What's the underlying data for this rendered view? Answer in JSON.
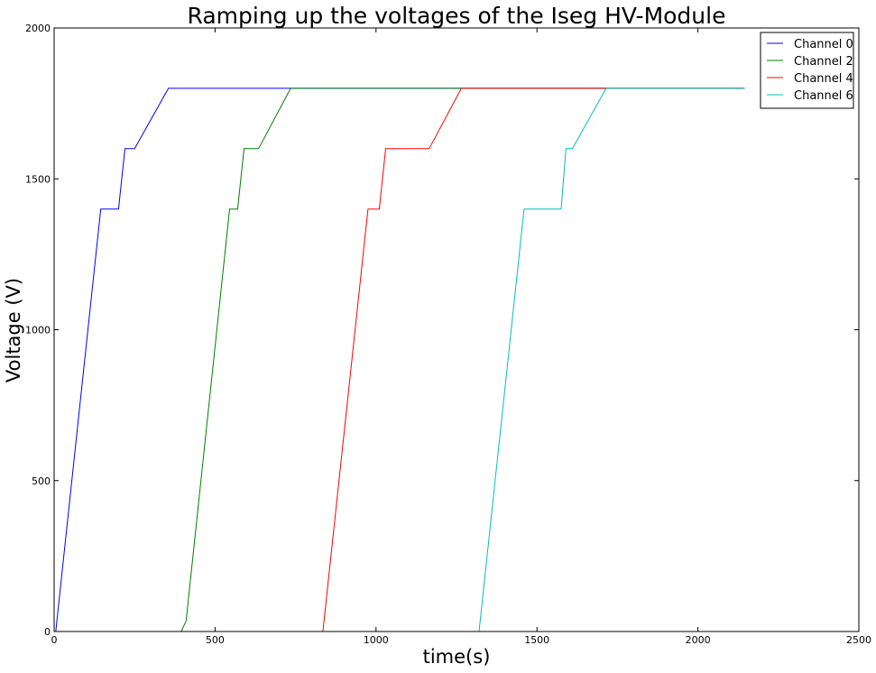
{
  "chart_data": {
    "type": "line",
    "title": "Ramping up the voltages of the Iseg HV-Module",
    "xlabel": "time(s)",
    "ylabel": "Voltage (V)",
    "xlim": [
      0,
      2500
    ],
    "ylim": [
      0,
      2000
    ],
    "xticks": [
      0,
      500,
      1000,
      1500,
      2000,
      2500
    ],
    "yticks": [
      0,
      500,
      1000,
      1500,
      2000
    ],
    "grid": false,
    "legend_position": "top-right",
    "series": [
      {
        "name": "Channel 0",
        "color": "#0000ff",
        "x": [
          0,
          5,
          145,
          200,
          220,
          250,
          355,
          2145
        ],
        "y": [
          0,
          0,
          1400,
          1400,
          1600,
          1600,
          1800,
          1800
        ]
      },
      {
        "name": "Channel 2",
        "color": "#008000",
        "x": [
          0,
          395,
          410,
          545,
          570,
          590,
          635,
          735,
          2145
        ],
        "y": [
          0,
          0,
          35,
          1400,
          1400,
          1600,
          1600,
          1800,
          1800
        ]
      },
      {
        "name": "Channel 4",
        "color": "#ff0000",
        "x": [
          0,
          835,
          975,
          1010,
          1030,
          1165,
          1265,
          2145
        ],
        "y": [
          0,
          0,
          1400,
          1400,
          1600,
          1600,
          1800,
          1800
        ]
      },
      {
        "name": "Channel 6",
        "color": "#00bfbf",
        "x": [
          0,
          1320,
          1460,
          1575,
          1590,
          1610,
          1715,
          2145
        ],
        "y": [
          0,
          0,
          1400,
          1400,
          1600,
          1600,
          1800,
          1800
        ]
      }
    ]
  }
}
